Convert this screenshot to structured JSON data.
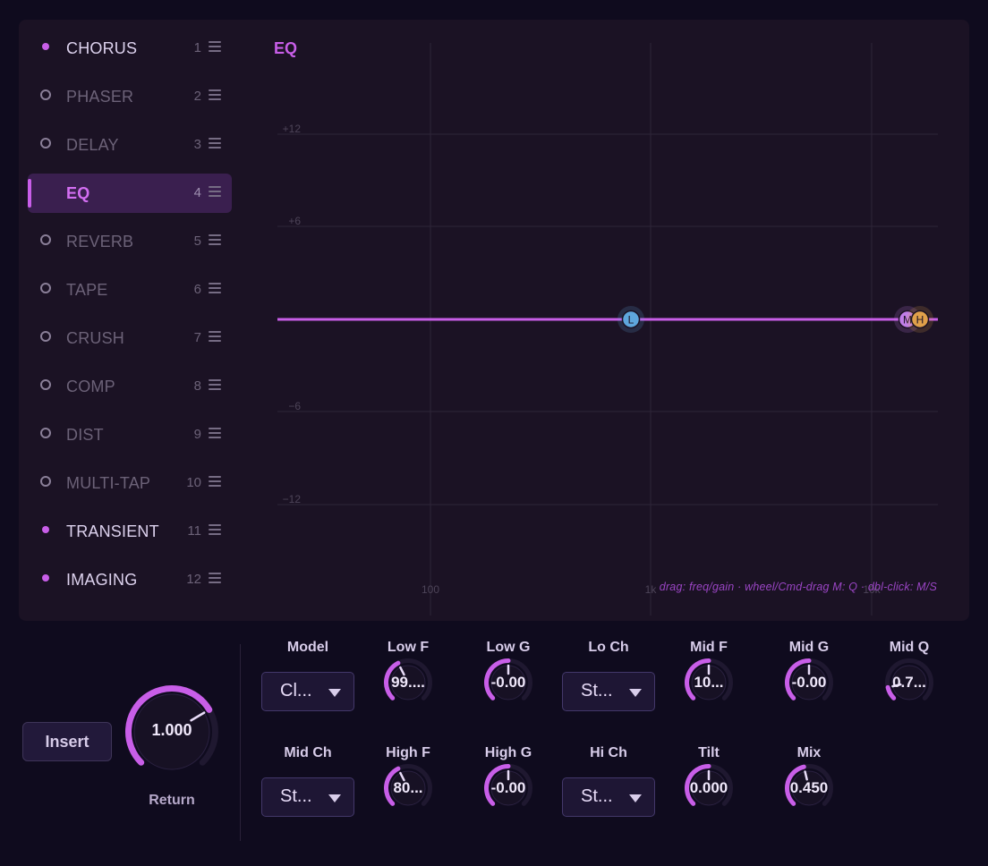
{
  "fx_chain": [
    {
      "name": "CHORUS",
      "num": "1",
      "enabled": true
    },
    {
      "name": "PHASER",
      "num": "2",
      "enabled": false
    },
    {
      "name": "DELAY",
      "num": "3",
      "enabled": false
    },
    {
      "name": "EQ",
      "num": "4",
      "enabled": true,
      "selected": true
    },
    {
      "name": "REVERB",
      "num": "5",
      "enabled": false
    },
    {
      "name": "TAPE",
      "num": "6",
      "enabled": false
    },
    {
      "name": "CRUSH",
      "num": "7",
      "enabled": false
    },
    {
      "name": "COMP",
      "num": "8",
      "enabled": false
    },
    {
      "name": "DIST",
      "num": "9",
      "enabled": false
    },
    {
      "name": "MULTI-TAP",
      "num": "10",
      "enabled": false
    },
    {
      "name": "TRANSIENT",
      "num": "11",
      "enabled": true
    },
    {
      "name": "IMAGING",
      "num": "12",
      "enabled": true
    }
  ],
  "eq": {
    "title": "EQ",
    "gain_ticks": [
      "+12",
      "+6",
      "-6",
      "-12"
    ],
    "freq_ticks": [
      "100",
      "1k",
      "10k"
    ],
    "nodes": [
      {
        "label": "L",
        "color": "#5ea6dc"
      },
      {
        "label": "M",
        "color": "#c07ee8"
      },
      {
        "label": "H",
        "color": "#e0a04a"
      }
    ],
    "hint": "drag: freq/gain  ·  wheel/Cmd-drag M: Q  ·  dbl-click: M/S",
    "curve_color": "#c85ee8"
  },
  "insert_label": "Insert",
  "return": {
    "label": "Return",
    "value": "1.000",
    "level": 0.72
  },
  "params": [
    {
      "label": "Model",
      "type": "select",
      "value": "Cl..."
    },
    {
      "label": "Low F",
      "type": "knob",
      "value": "99....",
      "level": 0.4
    },
    {
      "label": "Low G",
      "type": "knob",
      "value": "-0.00",
      "level": 0.5
    },
    {
      "label": "Lo Ch",
      "type": "select",
      "value": "St..."
    },
    {
      "label": "Mid F",
      "type": "knob",
      "value": "10...",
      "level": 0.5
    },
    {
      "label": "Mid G",
      "type": "knob",
      "value": "-0.00",
      "level": 0.5
    },
    {
      "label": "Mid Q",
      "type": "knob",
      "value": "0.7...",
      "level": 0.12
    },
    {
      "label": "Mid Ch",
      "type": "select",
      "value": "St..."
    },
    {
      "label": "High F",
      "type": "knob",
      "value": "80...",
      "level": 0.4
    },
    {
      "label": "High G",
      "type": "knob",
      "value": "-0.00",
      "level": 0.5
    },
    {
      "label": "Hi Ch",
      "type": "select",
      "value": "St..."
    },
    {
      "label": "Tilt",
      "type": "knob",
      "value": "0.000",
      "level": 0.5
    },
    {
      "label": "Mix",
      "type": "knob",
      "value": "0.450",
      "level": 0.45
    }
  ]
}
